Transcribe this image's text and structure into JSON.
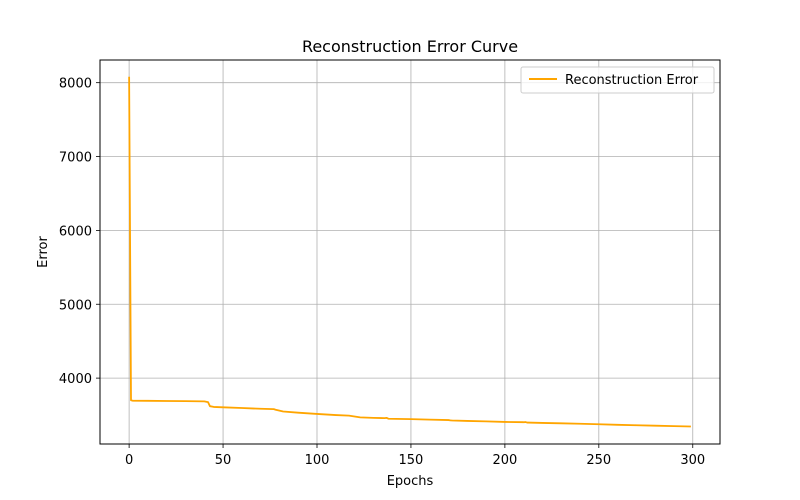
{
  "chart_data": {
    "type": "line",
    "title": "Reconstruction Error Curve",
    "xlabel": "Epochs",
    "ylabel": "Error",
    "xlim": [
      -15.5,
      314.5
    ],
    "ylim": [
      3108,
      8307
    ],
    "xticks": [
      0,
      50,
      100,
      150,
      200,
      250,
      300
    ],
    "yticks": [
      4000,
      5000,
      6000,
      7000,
      8000
    ],
    "grid": true,
    "legend_position": "upper right",
    "series": [
      {
        "name": "Reconstruction Error",
        "color": "#ffa500",
        "x": [
          0,
          1,
          2,
          10,
          20,
          30,
          40,
          42,
          43,
          45,
          50,
          60,
          70,
          77,
          78,
          80,
          82,
          90,
          100,
          110,
          117,
          120,
          123,
          130,
          136,
          137,
          138,
          150,
          160,
          170,
          171,
          172,
          180,
          190,
          200,
          210,
          211,
          212,
          220,
          230,
          240,
          250,
          260,
          270,
          280,
          290,
          299
        ],
        "values": [
          8080,
          3700,
          3694,
          3693,
          3690,
          3688,
          3685,
          3675,
          3620,
          3610,
          3605,
          3595,
          3585,
          3580,
          3572,
          3560,
          3548,
          3532,
          3515,
          3500,
          3492,
          3480,
          3468,
          3462,
          3458,
          3462,
          3450,
          3445,
          3438,
          3432,
          3428,
          3426,
          3420,
          3414,
          3407,
          3403,
          3405,
          3398,
          3393,
          3388,
          3382,
          3375,
          3368,
          3362,
          3356,
          3350,
          3345
        ]
      }
    ]
  }
}
